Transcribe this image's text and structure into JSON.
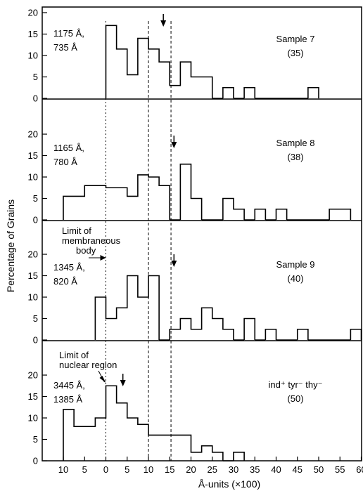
{
  "chart_data": {
    "type": "bar",
    "ylabel": "Percentage of Grains",
    "xlabel": "Å-units (×100)",
    "x_tick_labels": [
      "10",
      "5",
      "0",
      "5",
      "10",
      "15",
      "20",
      "25",
      "30",
      "35",
      "40",
      "45",
      "50",
      "55",
      "60"
    ],
    "x_tick_values": [
      -10,
      -5,
      0,
      5,
      10,
      15,
      20,
      25,
      30,
      35,
      40,
      45,
      50,
      55,
      60
    ],
    "xlim": [
      -15,
      62
    ],
    "ylim": [
      0,
      20
    ],
    "y_ticks": [
      0,
      5,
      10,
      15,
      20
    ],
    "guide_lines_x": [
      0,
      10,
      15.3
    ],
    "panels": [
      {
        "sample": "Sample 7",
        "count": "(35)",
        "dims": [
          "1175 Å,",
          "735 Å"
        ],
        "arrow_x": 13.5,
        "edges": [
          0,
          2.5,
          5,
          7.5,
          10,
          12.5,
          15,
          17.5,
          20,
          25,
          27.5,
          30,
          32.5,
          35,
          47.5,
          50
        ],
        "values": [
          17,
          11.5,
          5.5,
          14,
          11.5,
          8.5,
          3,
          8.5,
          5,
          0,
          2.5,
          0,
          2.5,
          0,
          2.5
        ]
      },
      {
        "sample": "Sample 8",
        "count": "(38)",
        "dims": [
          "1165 Å,",
          "780 Å"
        ],
        "arrow_x": 16,
        "edges": [
          -10,
          -5,
          0,
          5,
          7.5,
          10,
          12.5,
          15,
          17.5,
          20,
          22.5,
          27.5,
          30,
          32.5,
          35,
          37.5,
          40,
          42.5,
          52.5,
          57.5
        ],
        "values": [
          5.5,
          8,
          7.5,
          5.5,
          10.5,
          10,
          8,
          0,
          13,
          5,
          0,
          5,
          2.5,
          0,
          2.5,
          0,
          2.5,
          0,
          2.5
        ]
      },
      {
        "sample": "Sample 9",
        "count": "(40)",
        "dims": [
          "1345 Å,",
          "820 Å"
        ],
        "arrow_x": 16,
        "annotation": [
          "Limit of",
          "membraneous",
          "body"
        ],
        "edges": [
          -2.5,
          0,
          2.5,
          5,
          7.5,
          10,
          12.5,
          15,
          17.5,
          20,
          22.5,
          25,
          27.5,
          30,
          32.5,
          35,
          37.5,
          40,
          45,
          47.5,
          57.5,
          60
        ],
        "values": [
          10,
          5,
          7.5,
          15,
          10,
          15,
          0,
          2.5,
          5,
          2.5,
          7.5,
          5,
          2.5,
          0,
          5,
          0,
          2.5,
          0,
          2.5,
          0,
          2.5
        ]
      },
      {
        "sample": "ind⁺ tyr⁻ thy⁻",
        "count": "(50)",
        "dims": [
          "3445 Å,",
          "1385 Å"
        ],
        "arrow_x": 4,
        "annotation": [
          "Limit of",
          "nuclear region"
        ],
        "edges": [
          -10,
          -7.5,
          -5,
          -2.5,
          0,
          2.5,
          5,
          7.5,
          10,
          20,
          22.5,
          25,
          27.5,
          30,
          32.5
        ],
        "values": [
          12,
          8,
          8,
          10,
          17.5,
          13.5,
          10,
          8.5,
          6,
          2,
          3.5,
          2,
          0,
          2
        ]
      }
    ]
  }
}
